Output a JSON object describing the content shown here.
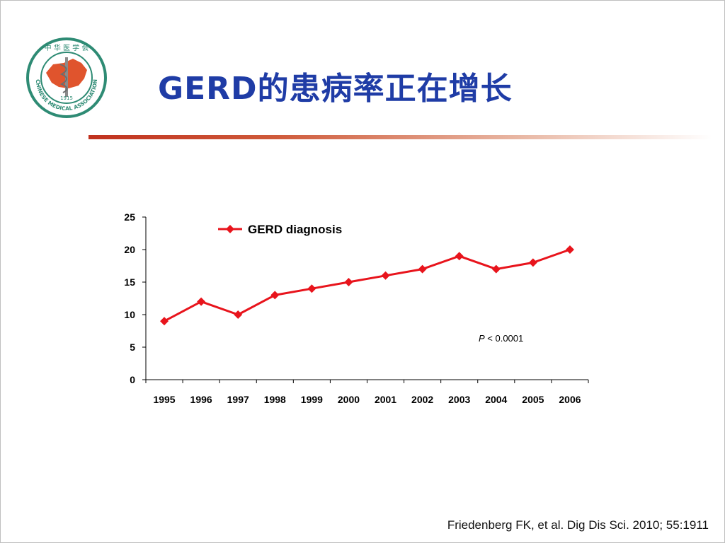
{
  "slide": {
    "title": "GERD的患病率正在增长",
    "citation": "Friedenberg FK, et al. Dig Dis Sci. 2010; 55:1911",
    "logo": {
      "top_text": "中 华 医 学 会",
      "ring_text": "CHINESE MEDICAL ASSOCIATION",
      "year": "1915"
    },
    "colors": {
      "title": "#1f3ca6",
      "rule": "#c0311e",
      "series": "#e8141c",
      "logo": "#2e8b74"
    }
  },
  "chart_data": {
    "type": "line",
    "categories": [
      "1995",
      "1996",
      "1997",
      "1998",
      "1999",
      "2000",
      "2001",
      "2002",
      "2003",
      "2004",
      "2005",
      "2006"
    ],
    "series": [
      {
        "name": "GERD diagnosis",
        "values": [
          9,
          12,
          10,
          13,
          14,
          15,
          16,
          17,
          19,
          17,
          18,
          20
        ]
      }
    ],
    "ylim": [
      0,
      25
    ],
    "yticks": [
      0,
      5,
      10,
      15,
      20,
      25
    ],
    "annotation": {
      "italic": "P",
      "text": " < 0.0001"
    },
    "legend": "top-left",
    "grid": false
  }
}
